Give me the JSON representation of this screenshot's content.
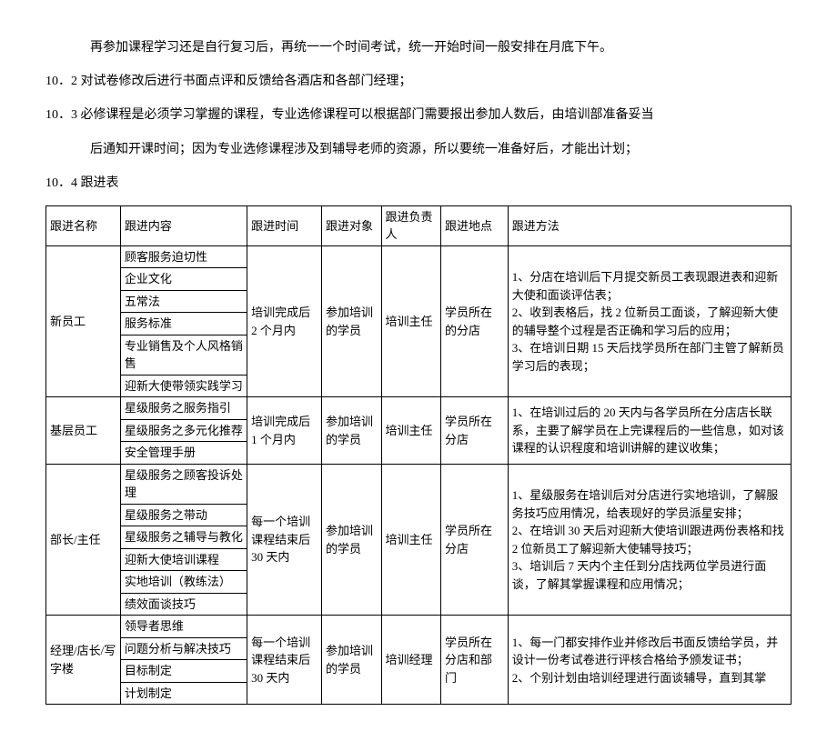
{
  "paragraphs": {
    "p0": "再参加课程学习还是自行复习后，再统一一个时间考试，统一开始时间一般安排在月底下午。",
    "p1": "10．2 对试卷修改后进行书面点评和反馈给各酒店和各部门经理；",
    "p2": "10．3 必修课程是必须学习掌握的课程，专业选修课程可以根据部门需要报出参加人数后，由培训部准备妥当",
    "p2b": "后通知开课时间；因为专业选修课程涉及到辅导老师的资源，所以要统一准备好后，才能出计划；",
    "p3": "10．4 跟进表"
  },
  "table": {
    "header": {
      "c0": "跟进名称",
      "c1": "跟进内容",
      "c2": "跟进时间",
      "c3": "跟进对象",
      "c4": "跟进负责人",
      "c5": "跟进地点",
      "c6": "跟进方法"
    },
    "g1": {
      "name": "新员工",
      "contents": {
        "r0": "顾客服务迫切性",
        "r1": "企业文化",
        "r2": "五常法",
        "r3": "服务标准",
        "r4": "专业销售及个人风格销售",
        "r5": "迎新大使带领实践学习"
      },
      "time": "培训完成后 2 个月内",
      "target": "参加培训的学员",
      "person": "培训主任",
      "place": "学员所在的分店",
      "method": "1、分店在培训后下月提交新员工表现跟进表和迎新大使和面谈评估表；\n2、收到表格后，找 2 位新员工面谈，了解迎新大使的辅导整个过程是否正确和学习后的应用；\n3、在培训日期 15 天后找学员所在部门主管了解新员学习后的表现；"
    },
    "g2": {
      "name": "基层员工",
      "contents": {
        "r0": "星级服务之服务指引",
        "r1": "星级服务之多元化推荐",
        "r2": "安全管理手册"
      },
      "time": "培训完成后 1 个月内",
      "target": "参加培训的学员",
      "person": "培训主任",
      "place": "学员所在分店",
      "method": "1、在培训过后的 20 天内与各学员所在分店店长联系，主要了解学员在上完课程后的一些信息，如对该课程的认识程度和培训讲解的建议收集；"
    },
    "g3": {
      "name": "部长/主任",
      "contents": {
        "r0": "星级服务之顾客投诉处理",
        "r1": "星级服务之带动",
        "r2": "星级服务之辅导与教化",
        "r3": "迎新大使培训课程",
        "r4": "实地培训（教练法）",
        "r5": "绩效面谈技巧"
      },
      "time": "每一个培训课程结束后 30 天内",
      "target": "参加培训的学员",
      "person": "培训主任",
      "place": "学员所在分店",
      "method": "1、星级服务在培训后对分店进行实地培训，了解服务技巧应用情况，给表现好的学员派星安排；\n2、在培训 30 天后对迎新大使培训跟进两份表格和找 2 位新员工了解迎新大使辅导技巧；\n3、培训后 7 天内个主任到分店找两位学员进行面谈，了解其掌握课程和应用情况；"
    },
    "g4": {
      "name": "经理/店长/写字楼",
      "contents": {
        "r0": "领导者思维",
        "r1": "问题分析与解决技巧",
        "r2": "目标制定",
        "r3": "计划制定"
      },
      "time": "每一个培训课程结束后 30 天内",
      "target": "参加培训的学员",
      "person": "培训经理",
      "place": "学员所在分店和部门",
      "method": "1、每一门都安排作业并修改后书面反馈给学员，并设计一份考试卷进行评核合格给予颁发证书；\n2、个别计划由培训经理进行面谈辅导，直到其掌"
    }
  }
}
